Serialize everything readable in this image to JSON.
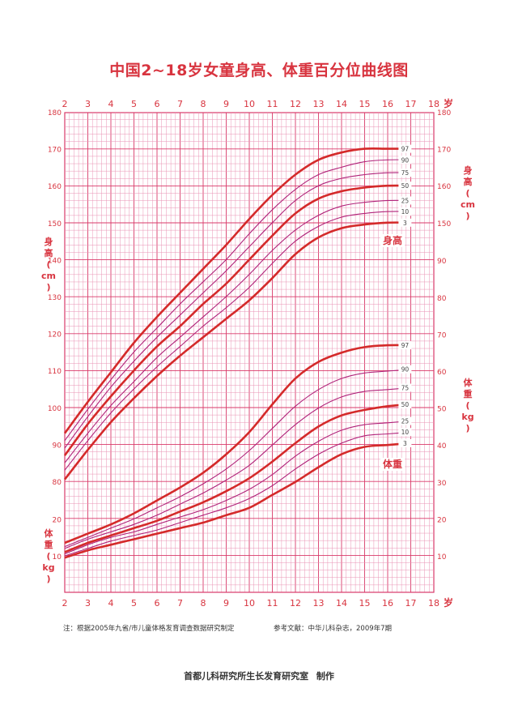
{
  "title": "中国2~18岁女童身高、体重百分位曲线图",
  "colors": {
    "grid_major": "#d93a6a",
    "grid_minor": "#ea93b4",
    "curve_main": "#d42a2a",
    "curve_thin": "#b0237a",
    "text_red": "#d8343f"
  },
  "footnote_left": "注：根据2005年九省/市儿童体格发育调查数据研究制定",
  "footnote_right": "参考文献：中华儿科杂志，2009年7期",
  "credit": {
    "org": "首都儿科研究所生长发育研究室",
    "action": "制作"
  },
  "chart_data": {
    "type": "line",
    "title": "中国2~18岁女童身高、体重百分位曲线图",
    "x_axis": {
      "label": "岁",
      "range": [
        2,
        18
      ],
      "ticks": [
        "2",
        "3",
        "4",
        "5",
        "6",
        "7",
        "8",
        "9",
        "10",
        "11",
        "12",
        "13",
        "14",
        "15",
        "16",
        "17",
        "18"
      ]
    },
    "height": {
      "curve_label": "身高",
      "axis_label_chars": [
        "身",
        "高",
        "(",
        "cm",
        ")"
      ],
      "left_ticks": [
        "80",
        "90",
        "100",
        "110",
        "120",
        "130",
        "140",
        "150",
        "160",
        "170",
        "180"
      ],
      "right_ticks": [
        "150",
        "160",
        "170",
        "180"
      ],
      "range": [
        80,
        180
      ],
      "x": [
        2,
        3,
        4,
        5,
        6,
        7,
        8,
        9,
        10,
        11,
        12,
        13,
        14,
        15,
        16,
        17
      ],
      "series": [
        {
          "name": "3",
          "values": [
            80.5,
            88.5,
            96.0,
            102.5,
            108.5,
            114.0,
            119.0,
            124.0,
            129.0,
            135.0,
            141.5,
            146.0,
            148.5,
            149.5,
            150.0,
            150.0
          ]
        },
        {
          "name": "10",
          "values": [
            83.0,
            91.0,
            98.5,
            105.0,
            111.0,
            116.5,
            122.0,
            127.0,
            132.5,
            139.0,
            145.0,
            149.0,
            151.5,
            152.5,
            153.0,
            153.0
          ]
        },
        {
          "name": "25",
          "values": [
            85.0,
            93.0,
            100.5,
            107.0,
            113.5,
            119.0,
            124.5,
            130.0,
            136.0,
            142.5,
            148.0,
            152.0,
            154.5,
            155.5,
            156.0,
            156.0
          ]
        },
        {
          "name": "50",
          "values": [
            87.0,
            95.5,
            103.0,
            110.0,
            116.5,
            122.0,
            128.0,
            133.5,
            140.0,
            146.5,
            152.5,
            156.5,
            158.5,
            159.5,
            160.0,
            160.0
          ]
        },
        {
          "name": "75",
          "values": [
            89.0,
            97.5,
            105.5,
            112.5,
            119.0,
            125.0,
            131.0,
            137.0,
            143.5,
            150.0,
            156.0,
            160.0,
            162.0,
            163.0,
            163.5,
            163.5
          ]
        },
        {
          "name": "90",
          "values": [
            91.0,
            99.5,
            107.5,
            115.0,
            121.5,
            128.0,
            134.0,
            140.0,
            147.0,
            153.5,
            159.0,
            163.0,
            165.0,
            166.5,
            167.0,
            167.0
          ]
        },
        {
          "name": "97",
          "values": [
            93.0,
            101.5,
            109.5,
            117.5,
            124.5,
            131.0,
            137.5,
            144.0,
            151.0,
            157.5,
            163.0,
            167.0,
            169.0,
            170.0,
            170.0,
            170.0
          ]
        }
      ]
    },
    "weight": {
      "curve_label": "体重",
      "axis_label_chars": [
        "体",
        "重",
        "(",
        "kg",
        ")"
      ],
      "left_ticks": [
        "10",
        "20"
      ],
      "right_ticks": [
        "10",
        "20",
        "30",
        "40",
        "50",
        "60",
        "70",
        "80",
        "90"
      ],
      "range": [
        10,
        90
      ],
      "x": [
        2,
        3,
        4,
        5,
        6,
        7,
        8,
        9,
        10,
        11,
        12,
        13,
        14,
        15,
        16,
        17
      ],
      "series": [
        {
          "name": "3",
          "values": [
            9.5,
            11.5,
            13.0,
            14.5,
            16.0,
            17.5,
            19.0,
            21.0,
            23.0,
            26.5,
            30.0,
            34.0,
            37.5,
            39.5,
            40.0,
            40.5
          ]
        },
        {
          "name": "10",
          "values": [
            10.0,
            12.0,
            14.0,
            15.5,
            17.0,
            19.0,
            21.0,
            23.0,
            25.5,
            29.0,
            33.5,
            37.5,
            40.5,
            42.5,
            43.0,
            43.5
          ]
        },
        {
          "name": "25",
          "values": [
            10.5,
            13.0,
            15.0,
            16.5,
            18.5,
            20.5,
            22.5,
            25.0,
            28.0,
            32.0,
            37.0,
            41.0,
            44.0,
            45.5,
            46.0,
            46.5
          ]
        },
        {
          "name": "50",
          "values": [
            11.0,
            13.5,
            15.5,
            17.5,
            19.5,
            22.0,
            24.5,
            27.5,
            31.0,
            35.5,
            40.5,
            45.0,
            48.0,
            49.5,
            50.5,
            51.0
          ]
        },
        {
          "name": "75",
          "values": [
            12.0,
            14.5,
            16.5,
            18.5,
            21.0,
            24.0,
            27.0,
            30.5,
            34.5,
            40.0,
            45.5,
            50.0,
            53.0,
            54.5,
            55.0,
            55.5
          ]
        },
        {
          "name": "90",
          "values": [
            12.5,
            15.0,
            17.5,
            20.0,
            23.0,
            26.0,
            29.5,
            33.5,
            38.5,
            44.5,
            50.5,
            55.0,
            58.0,
            59.5,
            60.0,
            60.5
          ]
        },
        {
          "name": "97",
          "values": [
            13.5,
            16.0,
            18.5,
            21.5,
            25.0,
            28.5,
            32.5,
            37.5,
            43.5,
            51.0,
            58.0,
            62.5,
            65.0,
            66.5,
            67.0,
            67.0
          ]
        }
      ]
    }
  }
}
